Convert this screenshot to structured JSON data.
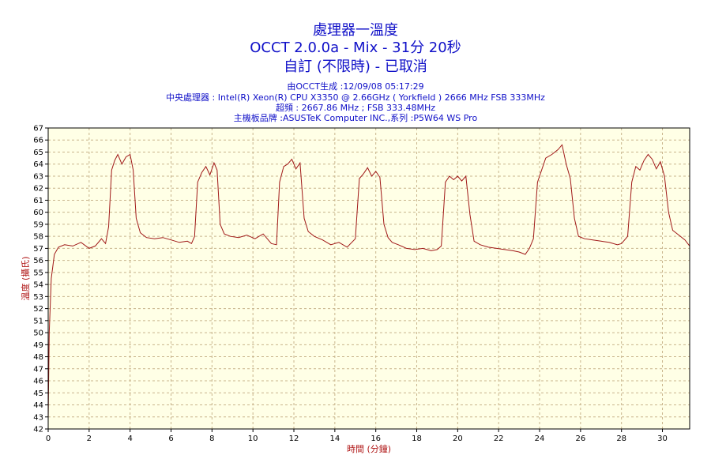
{
  "titles": {
    "line1": "處理器一溫度",
    "line2": "OCCT 2.0.0a - Mix - 31分 20秒",
    "line3": "自訂 (不限時) - 已取消"
  },
  "info": {
    "generated": "由OCCT生成 :12/09/08 05:17:29",
    "cpu": "中央處理器 : Intel(R) Xeon(R) CPU X3350 @ 2.66GHz ( Yorkfield ) 2666 MHz FSB 333MHz",
    "overclock": "超頻 : 2667.86 MHz ; FSB 333.48MHz",
    "motherboard": "主機板品牌 :ASUSTeK Computer INC.,系列 :P5W64 WS Pro"
  },
  "colors": {
    "title": "#1010c8",
    "line": "#a01818",
    "plot_bg": "#ffffe6",
    "grid": "#c8b48c",
    "axis_label": "#b01818"
  },
  "chart_data": {
    "type": "line",
    "xlabel": "時間 (分鐘)",
    "ylabel": "溫度 (攝氏)",
    "xlim": [
      0,
      31.33
    ],
    "ylim": [
      42,
      67
    ],
    "x_ticks": [
      0,
      2,
      4,
      6,
      8,
      10,
      12,
      14,
      16,
      18,
      20,
      22,
      24,
      26,
      28,
      30
    ],
    "y_ticks": [
      42,
      43,
      44,
      45,
      46,
      47,
      48,
      49,
      50,
      51,
      52,
      53,
      54,
      55,
      56,
      57,
      58,
      59,
      60,
      61,
      62,
      63,
      64,
      65,
      66,
      67
    ],
    "grid": true,
    "series": [
      {
        "x": [
          0,
          0.05,
          0.15,
          0.3,
          0.5,
          0.8,
          1.2,
          1.6,
          2.0,
          2.3,
          2.6,
          2.8,
          2.95,
          3.1,
          3.25,
          3.4,
          3.6,
          3.8,
          4.0,
          4.15,
          4.3,
          4.5,
          4.8,
          5.2,
          5.6,
          6.0,
          6.4,
          6.8,
          7.0,
          7.15,
          7.3,
          7.5,
          7.7,
          7.9,
          8.1,
          8.25,
          8.4,
          8.6,
          8.9,
          9.3,
          9.7,
          10.1,
          10.5,
          10.9,
          11.15,
          11.3,
          11.5,
          11.7,
          11.9,
          12.1,
          12.3,
          12.5,
          12.7,
          13.0,
          13.4,
          13.8,
          14.2,
          14.6,
          15.0,
          15.2,
          15.4,
          15.6,
          15.8,
          16.0,
          16.2,
          16.4,
          16.6,
          16.8,
          17.1,
          17.5,
          17.9,
          18.3,
          18.7,
          19.0,
          19.2,
          19.4,
          19.6,
          19.8,
          20.0,
          20.2,
          20.4,
          20.6,
          20.8,
          21.1,
          21.5,
          21.9,
          22.3,
          22.7,
          23.0,
          23.3,
          23.5,
          23.7,
          23.9,
          24.1,
          24.3,
          24.6,
          24.9,
          25.1,
          25.3,
          25.5,
          25.7,
          25.9,
          26.2,
          26.6,
          27.0,
          27.4,
          27.8,
          28.0,
          28.3,
          28.5,
          28.7,
          28.9,
          29.1,
          29.3,
          29.5,
          29.7,
          29.9,
          30.1,
          30.3,
          30.5,
          30.8,
          31.1,
          31.33
        ],
        "y": [
          42.8,
          50,
          54.5,
          56.5,
          57.1,
          57.3,
          57.2,
          57.5,
          57.0,
          57.2,
          57.8,
          57.4,
          58.8,
          63.5,
          64.3,
          64.8,
          64.0,
          64.6,
          64.8,
          63.5,
          59.5,
          58.3,
          57.9,
          57.8,
          57.9,
          57.7,
          57.5,
          57.6,
          57.4,
          58.0,
          62.5,
          63.3,
          63.8,
          63.1,
          64.1,
          63.5,
          59.0,
          58.2,
          58.0,
          57.9,
          58.1,
          57.8,
          58.2,
          57.4,
          57.3,
          62.5,
          63.8,
          64.0,
          64.4,
          63.6,
          64.1,
          59.5,
          58.4,
          58.0,
          57.7,
          57.3,
          57.5,
          57.1,
          57.8,
          62.8,
          63.2,
          63.7,
          63.0,
          63.4,
          62.9,
          59.0,
          57.9,
          57.5,
          57.3,
          57.0,
          56.9,
          57.0,
          56.8,
          56.9,
          57.2,
          62.5,
          63.0,
          62.7,
          63.0,
          62.6,
          63.0,
          59.8,
          57.6,
          57.3,
          57.1,
          57.0,
          56.9,
          56.8,
          56.7,
          56.5,
          57.0,
          57.8,
          62.5,
          63.5,
          64.5,
          64.8,
          65.2,
          65.6,
          64.0,
          62.8,
          59.5,
          58.0,
          57.8,
          57.7,
          57.6,
          57.5,
          57.3,
          57.4,
          58.0,
          62.5,
          63.8,
          63.5,
          64.3,
          64.8,
          64.4,
          63.6,
          64.2,
          63.0,
          60.0,
          58.5,
          58.1,
          57.7,
          57.2
        ]
      }
    ]
  }
}
